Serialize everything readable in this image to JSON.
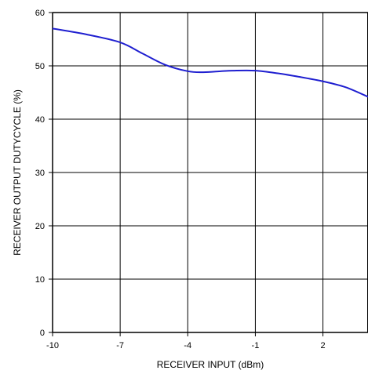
{
  "chart_data": {
    "type": "line",
    "title": "",
    "xlabel": "RECEIVER INPUT (dBm)",
    "ylabel": "RECEIVER OUTPUT DUTYCYCLE (%)",
    "xlim": [
      -10,
      4
    ],
    "ylim": [
      0,
      60
    ],
    "x_ticks": [
      -10,
      -7,
      -4,
      -1,
      2
    ],
    "y_ticks": [
      0,
      10,
      20,
      30,
      40,
      50,
      60
    ],
    "x_tick_labels": [
      "-10",
      "-7",
      "-4",
      "-1",
      "2"
    ],
    "y_tick_labels": [
      "0",
      "10",
      "20",
      "30",
      "40",
      "50",
      "60"
    ],
    "grid": true,
    "series": [
      {
        "color": "#1f1fd0",
        "x": [
          -10,
          -8.5,
          -7,
          -6,
          -5,
          -4,
          -3.3,
          -2.5,
          -2,
          -1,
          0,
          1,
          2,
          3,
          4
        ],
        "y": [
          57.0,
          55.9,
          54.4,
          52.3,
          50.2,
          49.0,
          48.8,
          49.0,
          49.1,
          49.1,
          48.6,
          47.9,
          47.1,
          46.0,
          44.2
        ]
      }
    ]
  }
}
